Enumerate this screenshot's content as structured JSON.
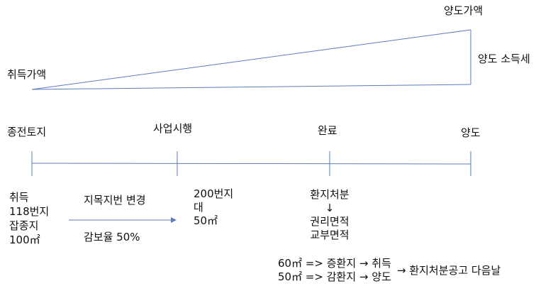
{
  "top": {
    "acquisition_price": "취득가액",
    "transfer_price": "양도가액",
    "transfer_income": "양도 소득세"
  },
  "timeline": {
    "start": "종전토지",
    "project": "사업시행",
    "complete": "완료",
    "transfer": "양도"
  },
  "acquisition": {
    "lines": [
      "취득",
      "118번지",
      "잡종지",
      "100㎡"
    ]
  },
  "change": {
    "label": "지목지번 변경",
    "reduction": "감보율 50%"
  },
  "after_change": {
    "lines": [
      "200번지",
      "대",
      "50㎡"
    ]
  },
  "disposition": {
    "title": "환지처분",
    "arrow": "↓",
    "lines": [
      "권리면적",
      "교부면적"
    ]
  },
  "notes": {
    "row1": "60㎡ => 증환지 → 취득",
    "row2": "50㎡ => 감환지 → 양도",
    "result": "→ 환지처분공고 다음날"
  },
  "colors": {
    "line": "#5b7bc2",
    "text": "#111111"
  }
}
